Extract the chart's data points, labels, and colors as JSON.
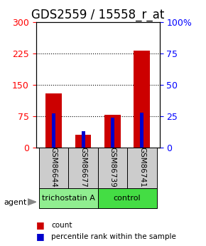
{
  "title": "GDS2559 / 15558_r_at",
  "samples": [
    "GSM86644",
    "GSM86677",
    "GSM86739",
    "GSM86741"
  ],
  "count_values": [
    130,
    30,
    78,
    232
  ],
  "percentile_values": [
    27,
    13,
    24,
    28
  ],
  "groups": [
    {
      "label": "trichostatin A",
      "color": "#90ee90",
      "samples": [
        0,
        1
      ]
    },
    {
      "label": "control",
      "color": "#4ddb4d",
      "samples": [
        2,
        3
      ]
    }
  ],
  "bar_width": 0.55,
  "percentile_bar_width": 0.12,
  "count_color": "#cc0000",
  "percentile_color": "#0000cc",
  "left_ylim": [
    0,
    300
  ],
  "right_ylim": [
    0,
    100
  ],
  "left_yticks": [
    0,
    75,
    150,
    225,
    300
  ],
  "right_yticks": [
    0,
    25,
    50,
    75,
    100
  ],
  "right_yticklabels": [
    "0",
    "25",
    "50",
    "75",
    "100%"
  ],
  "grid_values": [
    75,
    150,
    225
  ],
  "title_fontsize": 12,
  "tick_fontsize": 9,
  "agent_label": "agent",
  "sample_box_color": "#cccccc",
  "group_color_1": "#90ee90",
  "group_color_2": "#44dd44",
  "legend_count_label": "count",
  "legend_percentile_label": "percentile rank within the sample"
}
